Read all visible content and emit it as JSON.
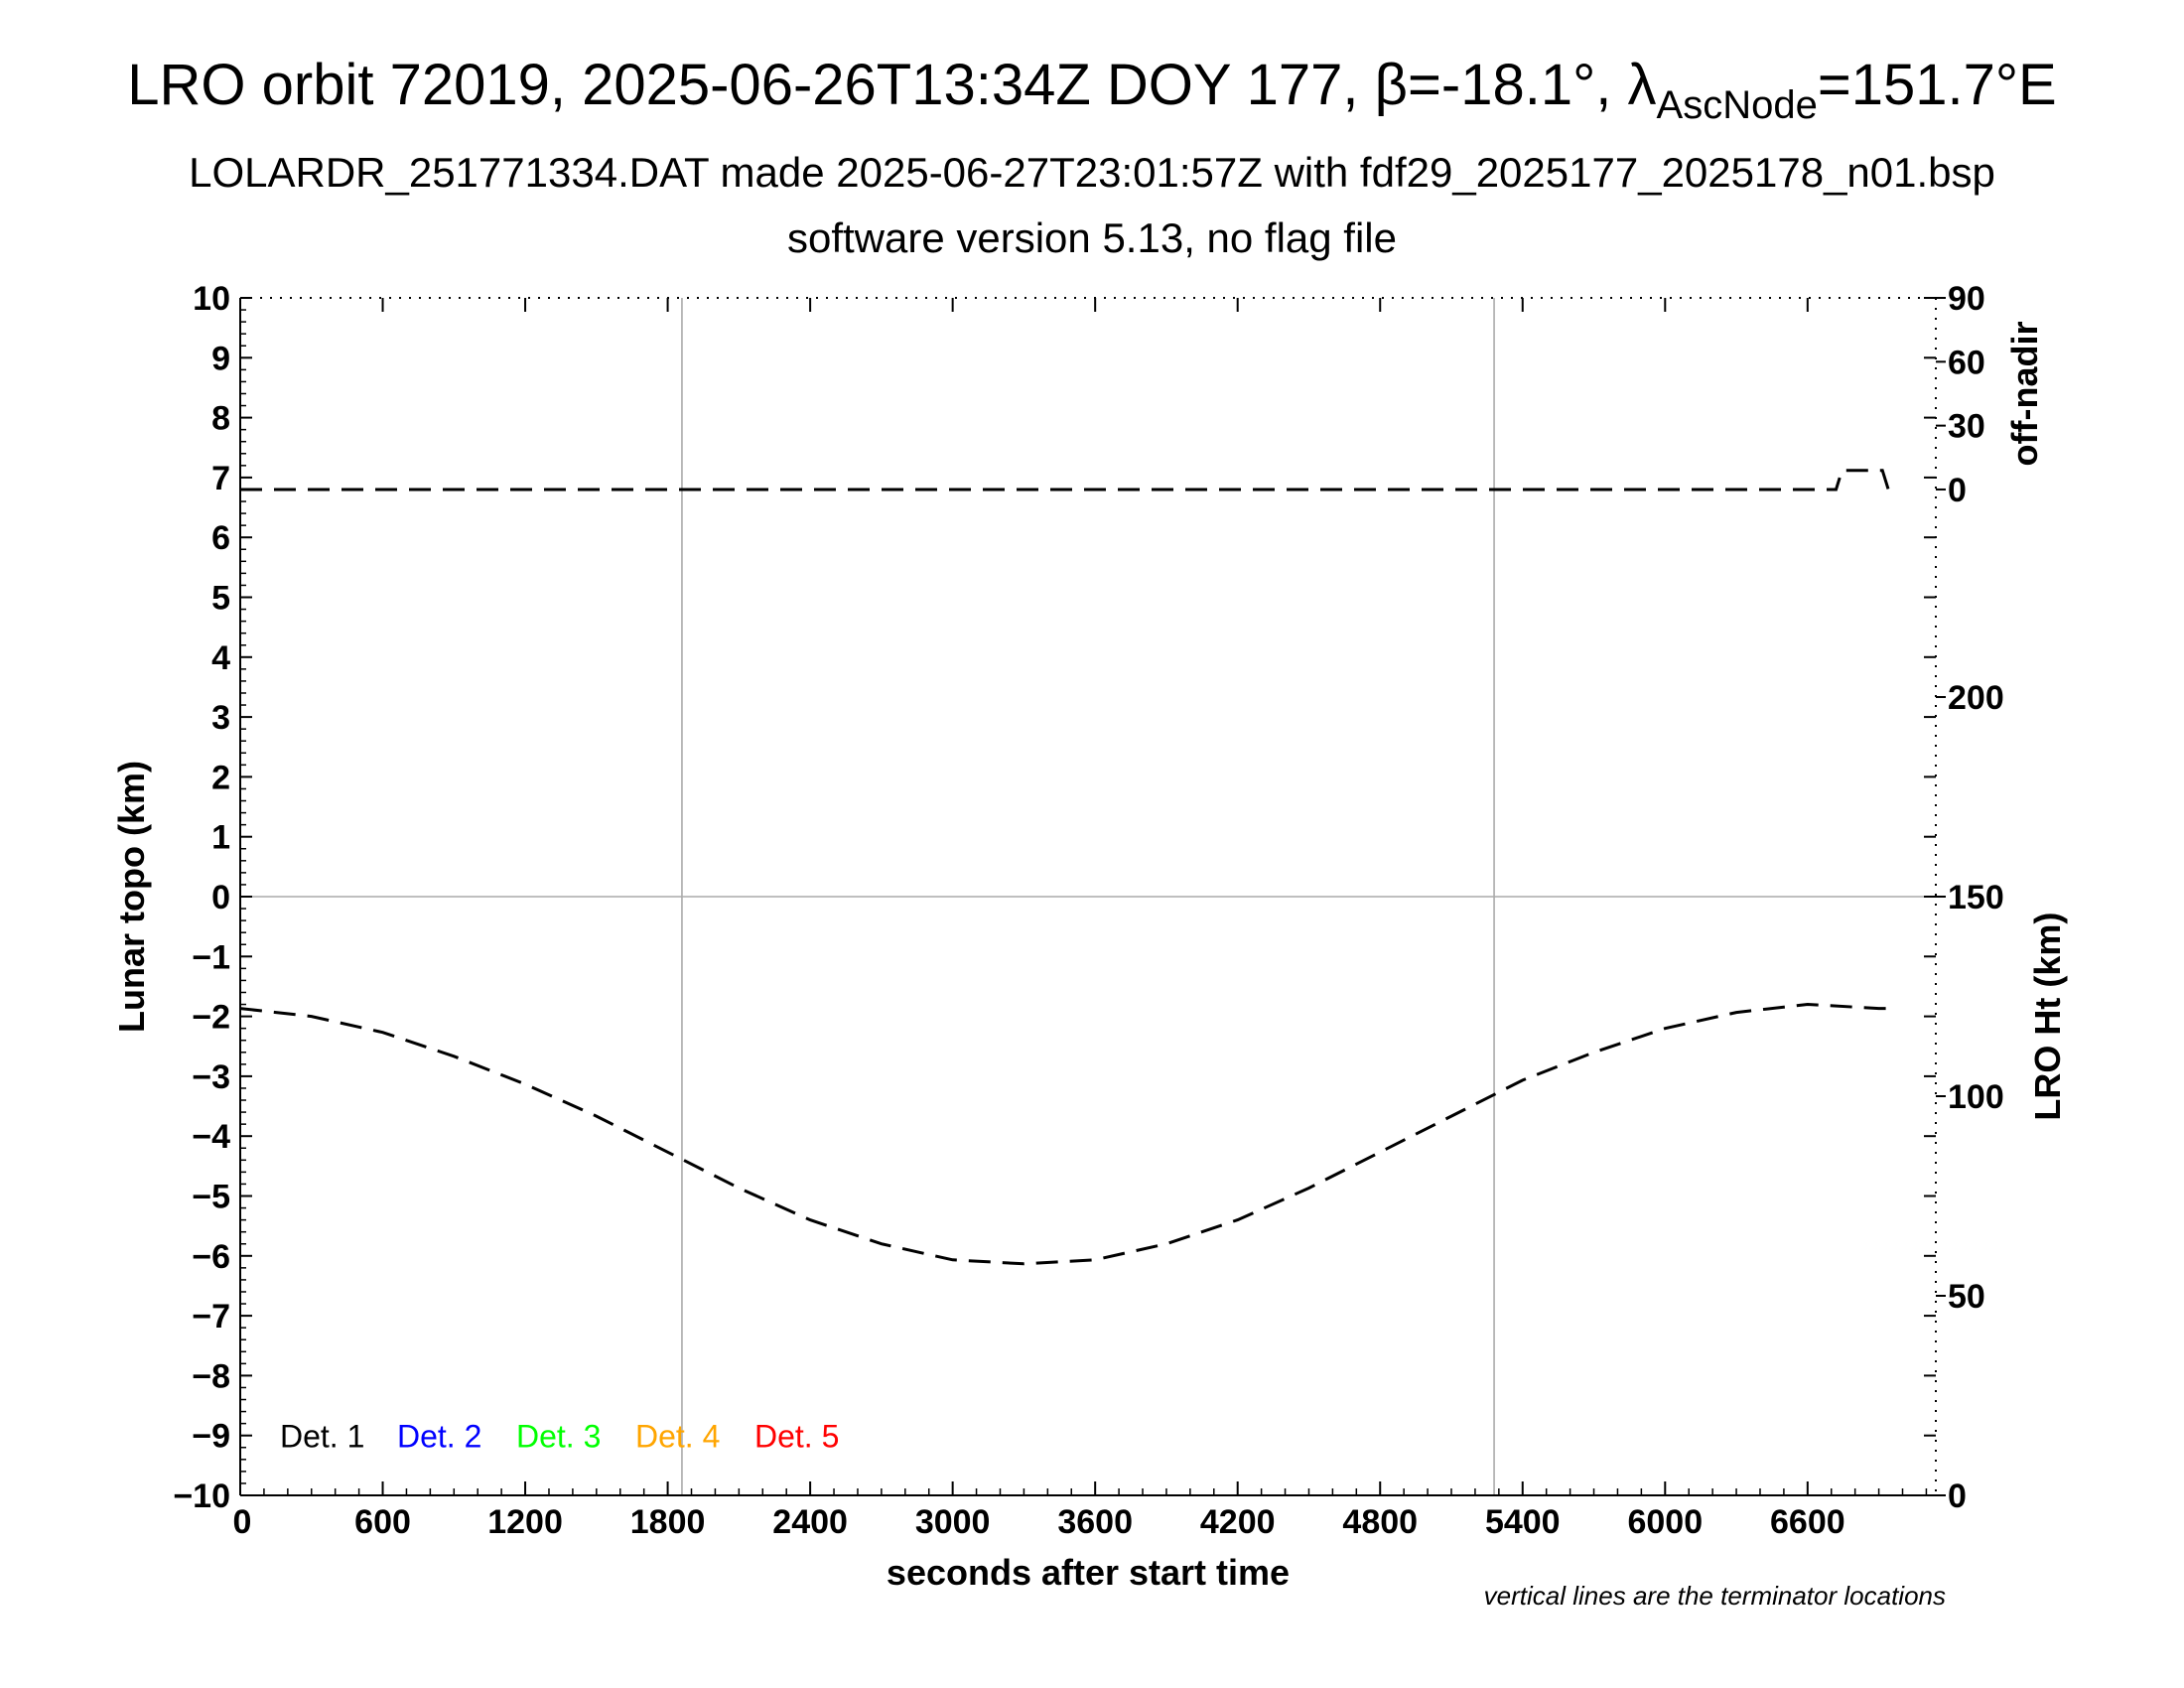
{
  "title": {
    "prefix": "LRO orbit 72019, 2025-06-26T13:34Z DOY 177, ",
    "beta_symbol": "β",
    "beta_text": "=-18.1°, ",
    "lambda_symbol": "λ",
    "lambda_sub": "AscNode",
    "lambda_text": "=151.7°E"
  },
  "subtitle1": "LOLARDR_251771334.DAT made 2025-06-27T23:01:57Z with fdf29_2025177_2025178_n01.bsp",
  "subtitle2": "software version 5.13, no flag file",
  "note": "vertical lines are the terminator locations",
  "chart_data": {
    "type": "line",
    "xlabel": "seconds after start time",
    "ylabel_left": "Lunar topo (km)",
    "ylabel_right_top": "off-nadir",
    "ylabel_right_bottom": "LRO Ht (km)",
    "xlim": [
      0,
      7140
    ],
    "ylim_left": [
      -10,
      10
    ],
    "x_ticks": [
      0,
      600,
      1200,
      1800,
      2400,
      3000,
      3600,
      4200,
      4800,
      5400,
      6000,
      6600
    ],
    "y_ticks_left": [
      10,
      9,
      8,
      7,
      6,
      5,
      4,
      3,
      2,
      1,
      0,
      -1,
      -2,
      -3,
      -4,
      -5,
      -6,
      -7,
      -8,
      -9,
      -10
    ],
    "y_tick_labels_left": [
      "10",
      "9",
      "8",
      "7",
      "6",
      "5",
      "4",
      "3",
      "2",
      "1",
      "0",
      "−1",
      "−2",
      "−3",
      "−4",
      "−5",
      "−6",
      "−7",
      "−8",
      "−9",
      "−10"
    ],
    "off_nadir_ticks": [
      90,
      60,
      30,
      0
    ],
    "off_nadir_zero_at_topo_km": 6.8,
    "off_nadir_90_at_topo_km": 10,
    "ht_ticks": [
      200,
      150,
      100,
      50,
      0
    ],
    "ht_range_km": [
      0,
      300
    ],
    "terminator_x": [
      1860,
      5280
    ],
    "grid": {
      "horizontal_at_topo_km": 0
    },
    "legend": {
      "placement": "lower-left",
      "entries": [
        {
          "label": "Det. 1",
          "color": "#000000"
        },
        {
          "label": "Det. 2",
          "color": "#0000ff"
        },
        {
          "label": "Det. 3",
          "color": "#00ff00"
        },
        {
          "label": "Det. 4",
          "color": "#ffa500"
        },
        {
          "label": "Det. 5",
          "color": "#ff0000"
        }
      ]
    },
    "series": [
      {
        "name": "off-nadir",
        "style": "dashed",
        "color": "#000000",
        "axis": "off_nadir_deg",
        "x": [
          0,
          1860,
          2400,
          3600,
          4800,
          5280,
          6600,
          6720,
          6745,
          6755,
          6900,
          6915,
          6940,
          6960
        ],
        "y": [
          0,
          0,
          0,
          0,
          0,
          0,
          0,
          0,
          9,
          9,
          9,
          9,
          0,
          0
        ]
      },
      {
        "name": "LRO Ht",
        "style": "dashed",
        "color": "#000000",
        "axis": "ht_km",
        "x": [
          0,
          300,
          600,
          900,
          1200,
          1500,
          1800,
          2100,
          2400,
          2700,
          3000,
          3300,
          3600,
          3900,
          4200,
          4500,
          4800,
          5100,
          5400,
          5700,
          6000,
          6300,
          6600,
          6900,
          6960
        ],
        "y": [
          122,
          120,
          116,
          110,
          103,
          95,
          86,
          77,
          69,
          63,
          59,
          58,
          59,
          63,
          69,
          77,
          86,
          95,
          104,
          111,
          117,
          121,
          123,
          122,
          122
        ]
      }
    ]
  }
}
